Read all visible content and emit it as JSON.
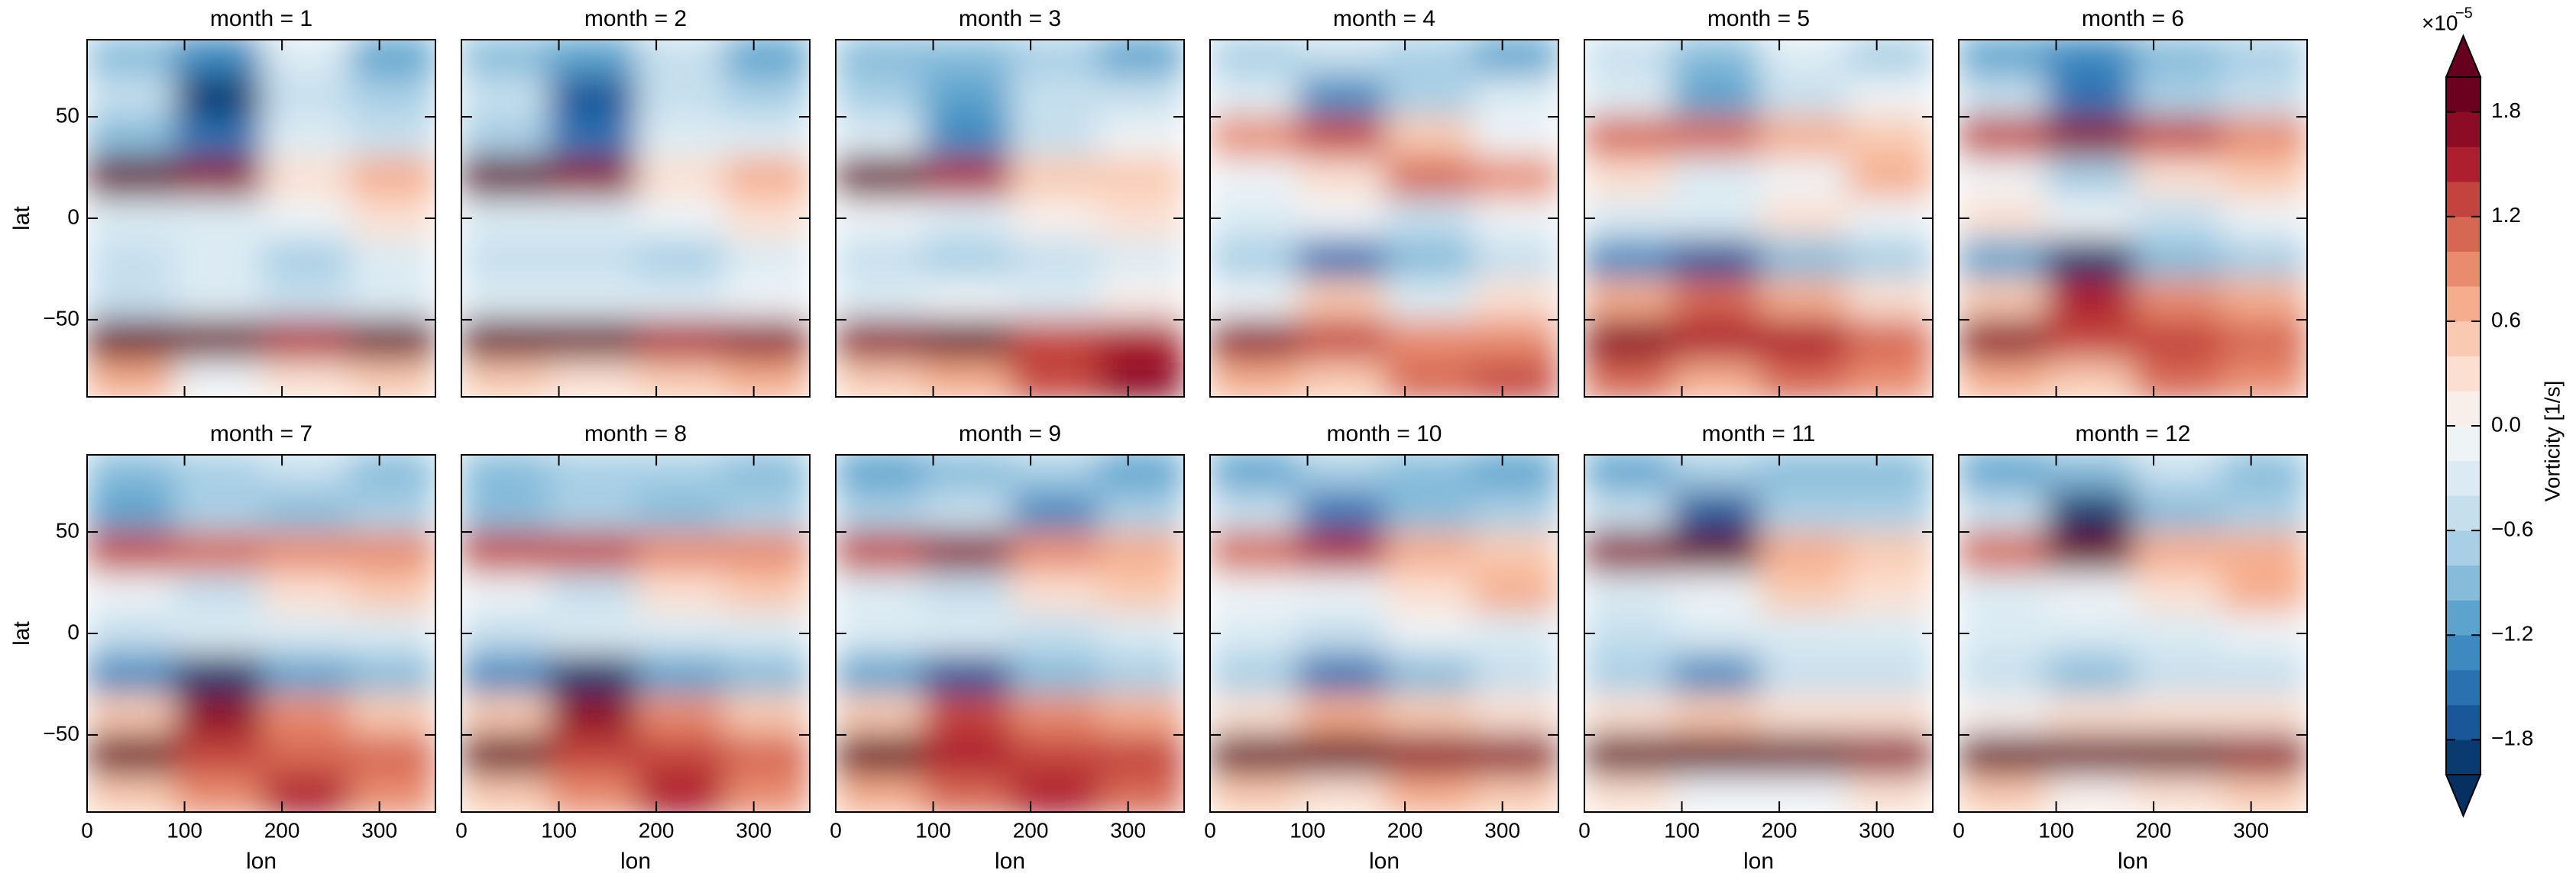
{
  "chart_data": {
    "type": "faceted-contour",
    "xlabel": "lon",
    "ylabel": "lat",
    "xlim": [
      0,
      357.5
    ],
    "ylim": [
      -88,
      88
    ],
    "xticks": [
      0,
      100,
      200,
      300
    ],
    "yticks": [
      {
        "value": -50,
        "label": "−50"
      },
      0,
      50
    ],
    "lon": [
      45,
      135,
      225,
      315
    ],
    "lat": [
      80,
      60,
      40,
      20,
      0,
      -20,
      -40,
      -60,
      -80
    ],
    "panels": [
      {
        "title": "month = 1",
        "values": [
          [
            -1,
            -1.4,
            -0.4,
            -1.2
          ],
          [
            -0.6,
            -2,
            -0.6,
            -0.8
          ],
          [
            -1,
            -1.6,
            -0.4,
            -0.6
          ],
          [
            2,
            1.6,
            0.2,
            0.6
          ],
          [
            -0.4,
            -0.4,
            -0.2,
            0.2
          ],
          [
            -0.6,
            -0.4,
            -0.8,
            -0.4
          ],
          [
            -0.6,
            -0.4,
            -0.6,
            -0.4
          ],
          [
            2,
            1.8,
            1.4,
            1.8
          ],
          [
            0.6,
            -0.2,
            0.2,
            0.4
          ]
        ]
      },
      {
        "title": "month = 2",
        "values": [
          [
            -1,
            -1.2,
            -0.6,
            -1.2
          ],
          [
            -0.6,
            -1.8,
            -0.6,
            -0.8
          ],
          [
            -0.8,
            -1.6,
            -0.4,
            -0.4
          ],
          [
            2,
            1.6,
            0.2,
            0.6
          ],
          [
            -0.4,
            -0.4,
            -0.2,
            0.2
          ],
          [
            -0.6,
            -0.6,
            -0.8,
            -0.4
          ],
          [
            -0.4,
            -0.4,
            -0.4,
            -0.2
          ],
          [
            2,
            1.8,
            1.4,
            1.6
          ],
          [
            0.4,
            0.2,
            0.4,
            0.6
          ]
        ]
      },
      {
        "title": "month = 3",
        "values": [
          [
            -1,
            -1,
            -0.8,
            -1.2
          ],
          [
            -0.8,
            -1.2,
            -0.6,
            -0.6
          ],
          [
            -0.4,
            -1.4,
            -0.6,
            -0.2
          ],
          [
            1.8,
            1.4,
            0.4,
            0.4
          ],
          [
            -0.2,
            -0.4,
            0,
            0.2
          ],
          [
            -0.6,
            -0.8,
            -0.6,
            -0.4
          ],
          [
            -0.4,
            -0.2,
            -0.4,
            0
          ],
          [
            1.6,
            1.8,
            1.2,
            1.4
          ],
          [
            0.4,
            0.6,
            1.2,
            1.6
          ]
        ]
      },
      {
        "title": "month = 4",
        "values": [
          [
            -0.8,
            -0.6,
            -0.8,
            -1.2
          ],
          [
            -0.4,
            -1.4,
            -0.8,
            -0.4
          ],
          [
            0.8,
            1.2,
            0.4,
            -0.2
          ],
          [
            -0.2,
            0.2,
            1,
            0.8
          ],
          [
            -0.4,
            -0.2,
            -0.6,
            -0.2
          ],
          [
            -0.8,
            -1.6,
            -1,
            -0.6
          ],
          [
            -0.2,
            0.4,
            -0.4,
            0.2
          ],
          [
            1.6,
            1.2,
            0.8,
            0.8
          ],
          [
            0.6,
            0.4,
            1,
            1.2
          ]
        ]
      },
      {
        "title": "month = 5",
        "values": [
          [
            -0.6,
            -1,
            -0.4,
            -0.8
          ],
          [
            -0.4,
            -1.2,
            -0.6,
            -0.2
          ],
          [
            1,
            1,
            0.6,
            0.4
          ],
          [
            0.2,
            -0.4,
            -0.2,
            0.6
          ],
          [
            -0.4,
            -0.4,
            0.2,
            -0.2
          ],
          [
            -1.4,
            -1.8,
            -1,
            -0.8
          ],
          [
            0.6,
            1,
            0.6,
            0.2
          ],
          [
            1.6,
            1.4,
            1.4,
            1
          ],
          [
            1,
            0.6,
            1,
            0.8
          ]
        ]
      },
      {
        "title": "month = 6",
        "values": [
          [
            -1.2,
            -1.4,
            -1,
            -0.8
          ],
          [
            -0.6,
            -1.6,
            -0.8,
            -0.6
          ],
          [
            1.2,
            1.6,
            1.2,
            0.8
          ],
          [
            -0.2,
            -0.8,
            0.2,
            0.4
          ],
          [
            0.2,
            -0.2,
            -0.6,
            -0.2
          ],
          [
            -1.2,
            -2,
            -1,
            -0.8
          ],
          [
            0.4,
            1.4,
            0.8,
            0.6
          ],
          [
            1.6,
            1.2,
            1.2,
            1
          ],
          [
            0.6,
            0.4,
            1,
            0.8
          ]
        ]
      },
      {
        "title": "month = 7",
        "values": [
          [
            -1,
            -0.8,
            -0.6,
            -1
          ],
          [
            -1.2,
            -0.8,
            -1,
            -0.8
          ],
          [
            1.2,
            1,
            0.8,
            0.8
          ],
          [
            -0.2,
            -0.6,
            0.2,
            0.4
          ],
          [
            -0.6,
            -0.4,
            -0.4,
            -0.4
          ],
          [
            -1.4,
            -2,
            -1.2,
            -1
          ],
          [
            0.4,
            1.6,
            0.8,
            0.4
          ],
          [
            1.8,
            1.2,
            1,
            1
          ],
          [
            0.4,
            0.8,
            1.4,
            0.8
          ]
        ]
      },
      {
        "title": "month = 8",
        "values": [
          [
            -1,
            -0.8,
            -0.8,
            -1
          ],
          [
            -1,
            -0.8,
            -1,
            -0.8
          ],
          [
            1.2,
            1.2,
            0.8,
            0.8
          ],
          [
            -0.2,
            -0.6,
            0.2,
            0.4
          ],
          [
            -0.6,
            -0.4,
            -0.4,
            -0.4
          ],
          [
            -1.4,
            -2,
            -1.2,
            -1
          ],
          [
            0.4,
            1.6,
            0.8,
            0.4
          ],
          [
            1.8,
            1.2,
            1.2,
            1
          ],
          [
            0.4,
            0.8,
            1.4,
            0.8
          ]
        ]
      },
      {
        "title": "month = 9",
        "values": [
          [
            -1.2,
            -1,
            -0.8,
            -1.2
          ],
          [
            -0.8,
            -0.6,
            -1.4,
            -0.8
          ],
          [
            1.2,
            1.6,
            0.8,
            0.6
          ],
          [
            -0.4,
            -0.6,
            0.2,
            0.4
          ],
          [
            -0.4,
            -0.4,
            -0.6,
            -0.4
          ],
          [
            -1.2,
            -1.8,
            -1,
            -0.8
          ],
          [
            0.4,
            1.2,
            0.8,
            0.6
          ],
          [
            2,
            1.4,
            1.2,
            1.2
          ],
          [
            0.6,
            1,
            1.4,
            1
          ]
        ]
      },
      {
        "title": "month = 10",
        "values": [
          [
            -1.2,
            -0.8,
            -1,
            -1.2
          ],
          [
            -0.6,
            -1.6,
            -1,
            -0.8
          ],
          [
            1,
            1.4,
            0.6,
            0.4
          ],
          [
            -0.2,
            -0.2,
            0.2,
            0.6
          ],
          [
            -0.4,
            -0.6,
            -0.2,
            -0.4
          ],
          [
            -0.8,
            -1.6,
            -1,
            -0.6
          ],
          [
            0.2,
            0.6,
            0.4,
            0.2
          ],
          [
            2,
            1.8,
            1.6,
            1.6
          ],
          [
            0.4,
            0.2,
            0.6,
            0.4
          ]
        ]
      },
      {
        "title": "month = 11",
        "values": [
          [
            -1.2,
            -0.8,
            -1,
            -1
          ],
          [
            -0.6,
            -1.8,
            -0.8,
            -0.8
          ],
          [
            1.6,
            2,
            0.6,
            0.4
          ],
          [
            -0.4,
            -0.2,
            0.4,
            0.2
          ],
          [
            -0.6,
            -0.4,
            -0.4,
            -0.4
          ],
          [
            -0.8,
            -1.4,
            -0.6,
            -0.6
          ],
          [
            0.2,
            0.4,
            0.2,
            0.2
          ],
          [
            2,
            2,
            1.8,
            1.6
          ],
          [
            0.2,
            -0.2,
            -0.2,
            0.2
          ]
        ]
      },
      {
        "title": "month = 12",
        "values": [
          [
            -1.2,
            -1,
            -0.6,
            -1
          ],
          [
            -0.6,
            -2,
            -1,
            -0.8
          ],
          [
            1,
            1.8,
            0.6,
            0.6
          ],
          [
            -0.4,
            -0.2,
            0.2,
            0.6
          ],
          [
            -0.4,
            -0.4,
            -0.4,
            -0.2
          ],
          [
            -0.6,
            -1,
            -0.6,
            -0.6
          ],
          [
            0,
            0.2,
            0.2,
            0.2
          ],
          [
            2,
            1.8,
            1.8,
            1.6
          ],
          [
            0.4,
            0,
            0.2,
            0.4
          ]
        ]
      }
    ],
    "colorbar": {
      "label": "Vorticity [1/s]",
      "scale_label": "×10",
      "scale_exponent": "−5",
      "lim": [
        -2,
        2
      ],
      "ticks": [
        {
          "value": -1.8,
          "label": "−1.8"
        },
        {
          "value": -1.2,
          "label": "−1.2"
        },
        {
          "value": -0.6,
          "label": "−0.6"
        },
        {
          "value": 0,
          "label": "0.0"
        },
        0.6,
        1.2,
        1.8
      ],
      "levels": [
        -2,
        -1.8,
        -1.6,
        -1.4,
        -1.2,
        -1,
        -0.8,
        -0.6,
        -0.4,
        -0.2,
        0,
        0.2,
        0.4,
        0.6,
        0.8,
        1,
        1.2,
        1.4,
        1.6,
        1.8,
        2
      ],
      "colors": [
        "#0a3b70",
        "#1a5799",
        "#2a71b2",
        "#3d89c0",
        "#5ca3cd",
        "#86bcda",
        "#a8cfe5",
        "#c6dfed",
        "#dcebf3",
        "#eef3f6",
        "#f8efeb",
        "#fbe0d2",
        "#f9cab1",
        "#f5ad8d",
        "#e88b6e",
        "#d66853",
        "#c3443e",
        "#ad1f2f",
        "#8d0c25",
        "#6c011f"
      ],
      "under_color": "#053061",
      "over_color": "#67001f"
    }
  }
}
